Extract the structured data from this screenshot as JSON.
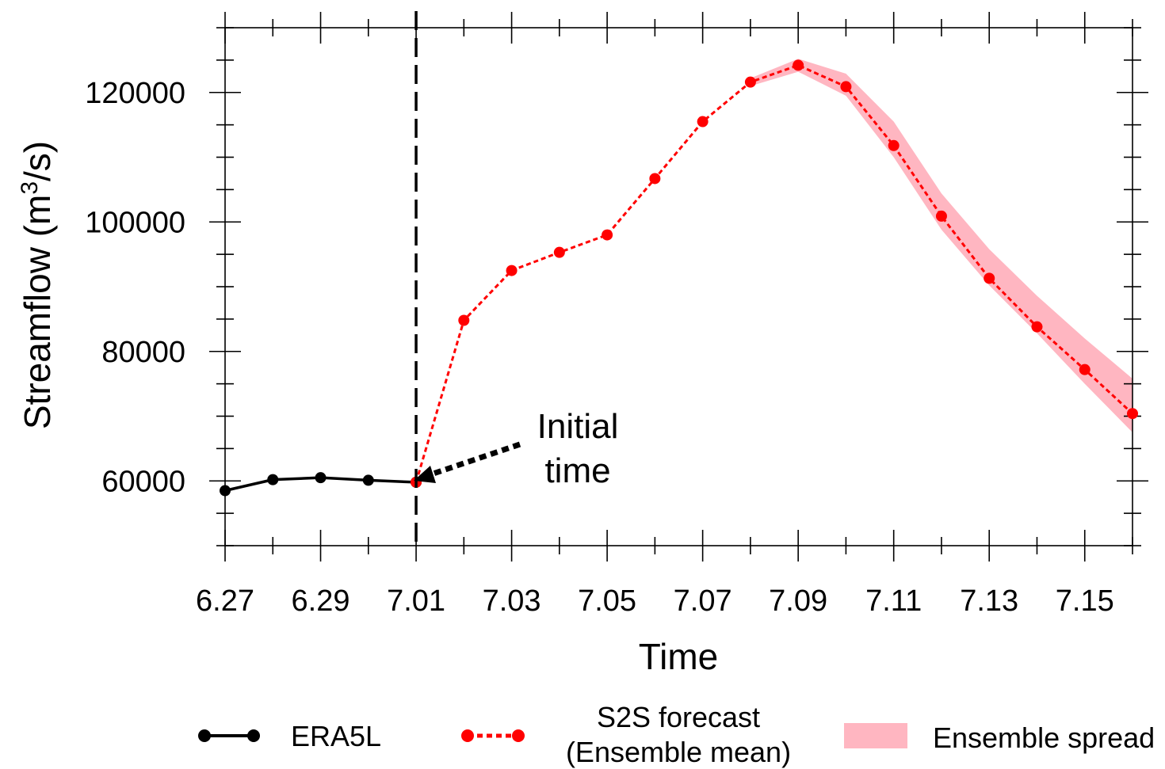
{
  "chart_data": {
    "type": "line",
    "xlabel": "Time",
    "ylabel_main": "Streamflow (m",
    "ylabel_sup": "3",
    "ylabel_tail": "/s)",
    "x_ticks": [
      "6.27",
      "6.29",
      "7.01",
      "7.03",
      "7.05",
      "7.07",
      "7.09",
      "7.11",
      "7.13",
      "7.15"
    ],
    "y_ticks": [
      60000,
      80000,
      100000,
      120000
    ],
    "ylim": [
      50000,
      130000
    ],
    "xlim_days_from_first": [
      0,
      19
    ],
    "grid": false,
    "initial_time_x": "7.01",
    "annotation": {
      "line1": "Initial",
      "line2": "time"
    },
    "series": [
      {
        "name": "ERA5L",
        "color": "#000000",
        "style": "solid",
        "x": [
          "6.27",
          "6.28",
          "6.29",
          "6.30",
          "7.01"
        ],
        "values": [
          58500,
          60200,
          60500,
          60100,
          59800
        ]
      },
      {
        "name_line1": "S2S forecast",
        "name_line2": "(Ensemble mean)",
        "color": "#ff0000",
        "style": "dotted",
        "x": [
          "7.01",
          "7.02",
          "7.03",
          "7.04",
          "7.05",
          "7.06",
          "7.07",
          "7.08",
          "7.09",
          "7.10",
          "7.11",
          "7.12",
          "7.13",
          "7.14",
          "7.15",
          "7.16"
        ],
        "values": [
          59800,
          84800,
          92500,
          95300,
          98000,
          106700,
          115500,
          121600,
          124200,
          120900,
          111800,
          100900,
          91300,
          83800,
          77200,
          70400
        ]
      }
    ],
    "spread": {
      "name": "Ensemble spread",
      "color": "#ffb6c1",
      "x": [
        "7.08",
        "7.09",
        "7.10",
        "7.11",
        "7.12",
        "7.13",
        "7.14",
        "7.15",
        "7.16"
      ],
      "upper": [
        122200,
        125200,
        122900,
        115500,
        104400,
        95800,
        88600,
        82000,
        75800
      ],
      "lower": [
        121000,
        123200,
        119500,
        110000,
        98800,
        90200,
        82800,
        75000,
        67500
      ]
    }
  }
}
